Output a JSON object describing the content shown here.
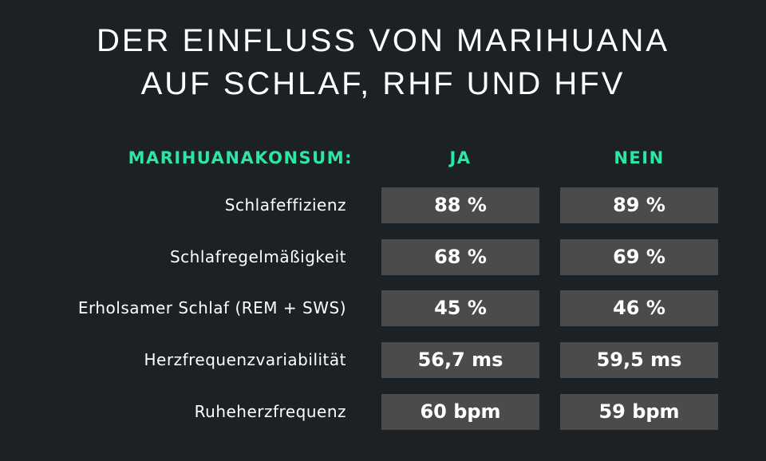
{
  "title": {
    "line1": "DER EINFLUSS VON MARIHUANA",
    "line2": "AUF SCHLAF, RHF UND HFV"
  },
  "colors": {
    "background": "#1c2125",
    "accent": "#2ee6a4",
    "cell": "#4b4b4b",
    "text": "#ffffff"
  },
  "chart_data": {
    "type": "table",
    "header": {
      "label": "MARIHUANAKONSUM:",
      "columns": [
        "JA",
        "NEIN"
      ]
    },
    "rows": [
      {
        "label": "Schlafeffizienz",
        "values": [
          "88 %",
          "89 %"
        ]
      },
      {
        "label": "Schlafregelmäßigkeit",
        "values": [
          "68 %",
          "69 %"
        ]
      },
      {
        "label": "Erholsamer Schlaf (REM + SWS)",
        "values": [
          "45 %",
          "46 %"
        ]
      },
      {
        "label": "Herzfrequenzvariabilität",
        "values": [
          "56,7 ms",
          "59,5 ms"
        ]
      },
      {
        "label": "Ruheherzfrequenz",
        "values": [
          "60 bpm",
          "59 bpm"
        ]
      }
    ]
  }
}
